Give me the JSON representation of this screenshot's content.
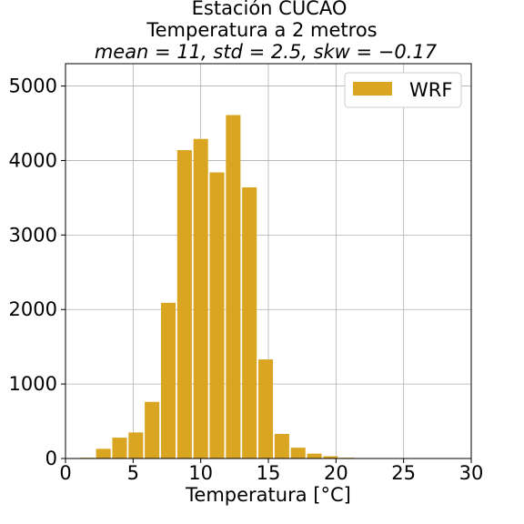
{
  "chart_data": {
    "type": "bar",
    "title_lines": [
      "Estación CUCAO",
      "Temperatura a 2 metros"
    ],
    "subtitle": "mean = 11, std = 2.5, skw = −0.17",
    "xlabel": "Temperatura [°C]",
    "ylabel": "",
    "xlim": [
      0,
      30
    ],
    "ylim": [
      0,
      5300
    ],
    "xticks": [
      0,
      5,
      10,
      15,
      20,
      25,
      30
    ],
    "yticks": [
      0,
      1000,
      2000,
      3000,
      4000,
      5000
    ],
    "grid": true,
    "legend": {
      "position": "top-right",
      "entries": [
        "WRF"
      ]
    },
    "bar_color": "#daa520",
    "bins": [
      [
        1.0,
        2.2
      ],
      [
        2.2,
        3.4
      ],
      [
        3.4,
        4.6
      ],
      [
        4.6,
        5.8
      ],
      [
        5.8,
        7.0
      ],
      [
        7.0,
        8.2
      ],
      [
        8.2,
        9.4
      ],
      [
        9.4,
        10.6
      ],
      [
        10.6,
        11.8
      ],
      [
        11.8,
        13.0
      ],
      [
        13.0,
        14.2
      ],
      [
        14.2,
        15.4
      ],
      [
        15.4,
        16.6
      ],
      [
        16.6,
        17.8
      ],
      [
        17.8,
        19.0
      ],
      [
        19.0,
        20.2
      ],
      [
        20.2,
        21.4
      ]
    ],
    "values": [
      10,
      130,
      280,
      350,
      760,
      2090,
      4140,
      4290,
      3840,
      4610,
      3640,
      1330,
      330,
      145,
      65,
      30,
      10
    ]
  }
}
